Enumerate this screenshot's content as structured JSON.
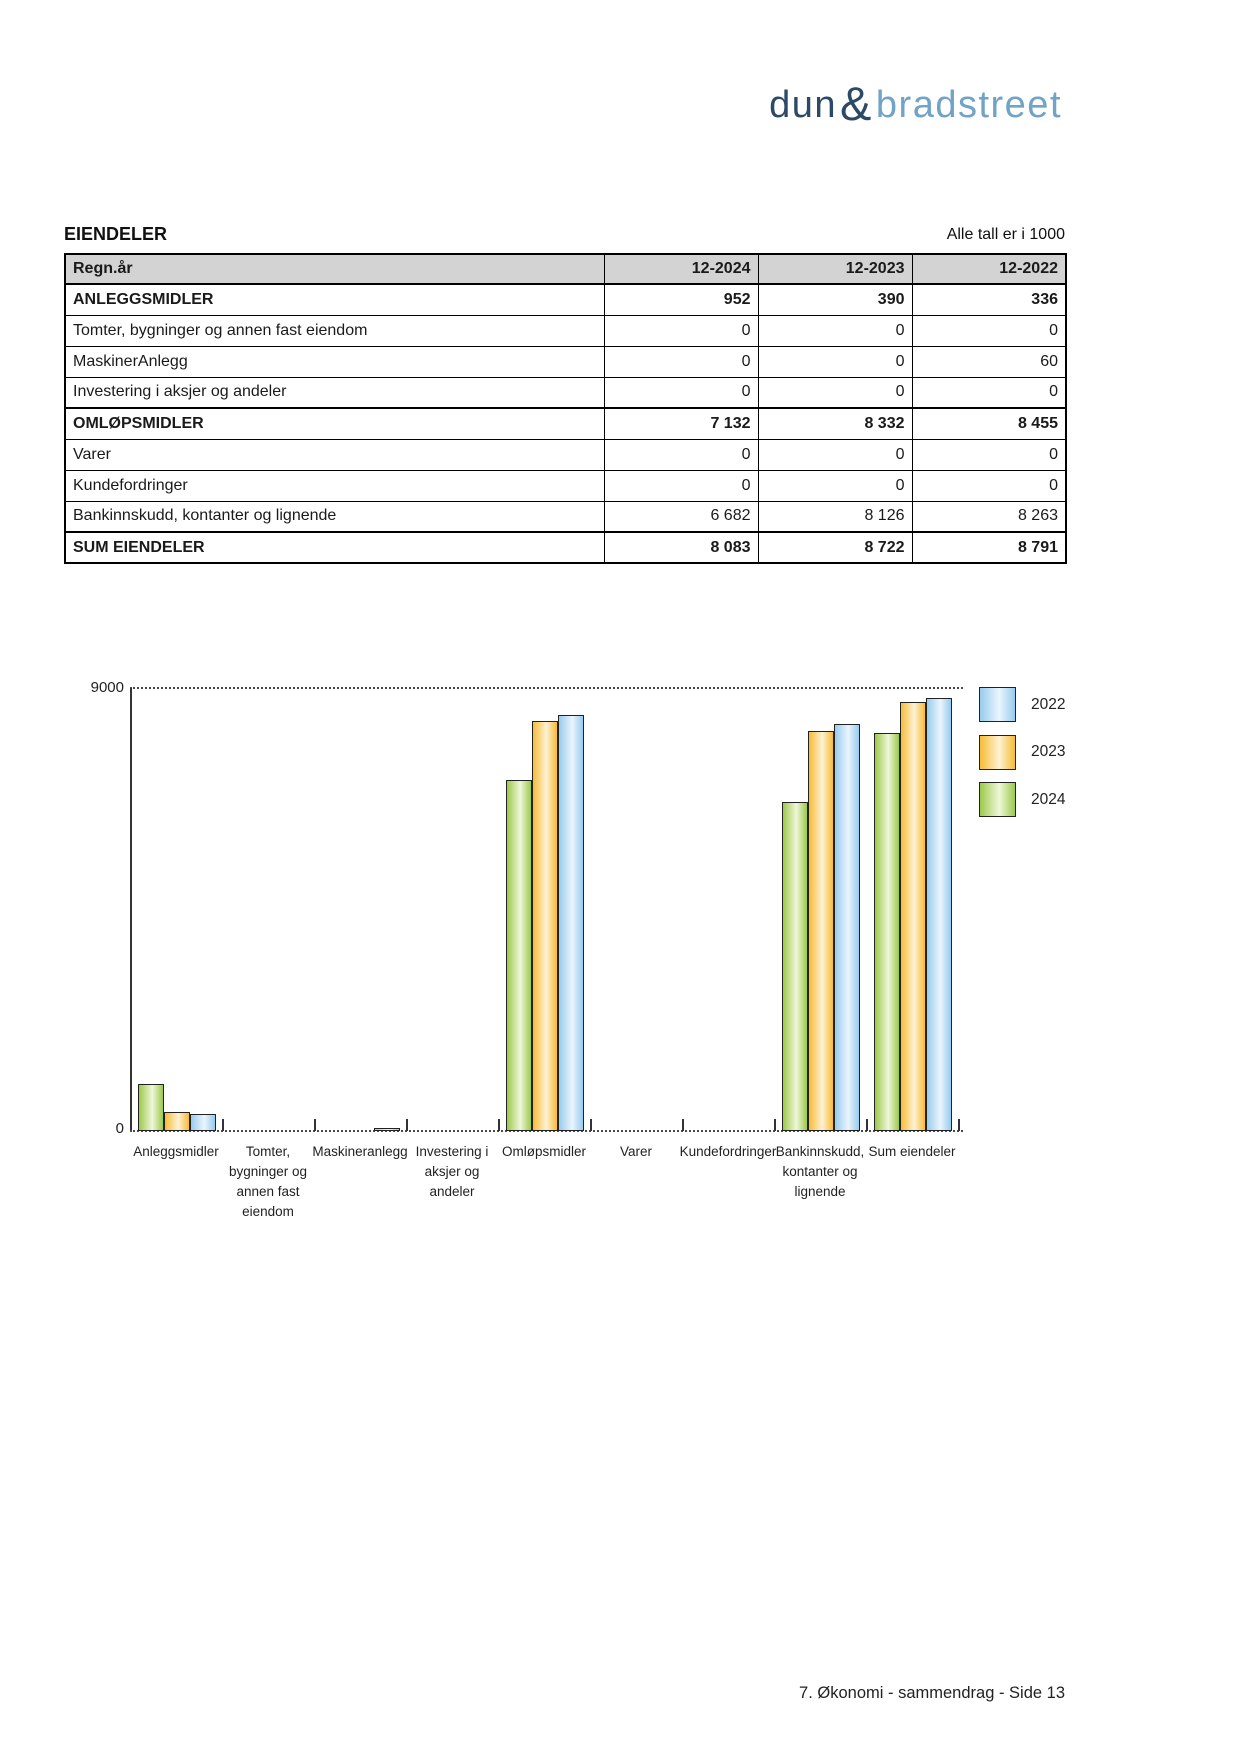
{
  "logo": {
    "dun": "dun",
    "amp": "&",
    "bradstreet": "bradstreet",
    "dun_color": "#2c4a66",
    "brad_color": "#71a3c6"
  },
  "section": {
    "title": "EIENDELER",
    "note": "Alle tall er i 1000"
  },
  "table": {
    "columns": [
      "Regn.år",
      "12-2024",
      "12-2023",
      "12-2022"
    ],
    "rows": [
      {
        "label": "ANLEGGSMIDLER",
        "values": [
          "952",
          "390",
          "336"
        ],
        "bold": true
      },
      {
        "label": "Tomter, bygninger og annen fast eiendom",
        "values": [
          "0",
          "0",
          "0"
        ],
        "bold": false
      },
      {
        "label": "MaskinerAnlegg",
        "values": [
          "0",
          "0",
          "0"
        ],
        "bold": false
      },
      {
        "label": "Investering i aksjer og andeler",
        "values": [
          "0",
          "0",
          "0"
        ],
        "bold": false
      },
      {
        "label": "OMLØPSMIDLER",
        "values": [
          "7 132",
          "8 332",
          "8 455"
        ],
        "bold": true
      },
      {
        "label": "Varer",
        "values": [
          "0",
          "0",
          "0"
        ],
        "bold": false
      },
      {
        "label": "Kundefordringer",
        "values": [
          "0",
          "0",
          "0"
        ],
        "bold": false
      },
      {
        "label": "Bankinnskudd, kontanter og lignende",
        "values": [
          "6 682",
          "8 126",
          "8 263"
        ],
        "bold": false
      },
      {
        "label": "SUM EIENDELER",
        "values": [
          "8 083",
          "8 722",
          "8 791"
        ],
        "bold": true
      }
    ],
    "row_overrides": {
      "2": {
        "values": [
          "0",
          "0",
          "60"
        ]
      }
    }
  },
  "chart_data": {
    "type": "bar",
    "title": "",
    "xlabel": "",
    "ylabel": "",
    "ylim": [
      0,
      9000
    ],
    "ytick_labels": {
      "top": "9000",
      "bottom": "0"
    },
    "grid": "dotted-top-and-baseline",
    "legend_position": "right",
    "categories": [
      {
        "lines": [
          "Anleggsmidler"
        ]
      },
      {
        "lines": [
          "Tomter,",
          "bygninger og",
          "annen fast",
          "eiendom"
        ]
      },
      {
        "lines": [
          "Maskineranlegg"
        ]
      },
      {
        "lines": [
          "Investering i",
          "aksjer og",
          "andeler"
        ]
      },
      {
        "lines": [
          "Omløpsmidler"
        ]
      },
      {
        "lines": [
          "Varer"
        ]
      },
      {
        "lines": [
          "Kundefordringer"
        ]
      },
      {
        "lines": [
          "Bankinnskudd,",
          "kontanter og",
          "lignende"
        ]
      },
      {
        "lines": [
          "Sum eiendeler"
        ]
      }
    ],
    "series": [
      {
        "name": "2024",
        "values": [
          952,
          0,
          0,
          0,
          7132,
          0,
          0,
          6682,
          8083
        ],
        "edge_color": "#9cc94b",
        "mid_color": "#eff7da"
      },
      {
        "name": "2023",
        "values": [
          390,
          0,
          0,
          0,
          8332,
          0,
          0,
          8126,
          8722
        ],
        "edge_color": "#f6bc35",
        "mid_color": "#fdf2d4"
      },
      {
        "name": "2022",
        "values": [
          336,
          0,
          60,
          0,
          8455,
          0,
          0,
          8263,
          8791
        ],
        "edge_color": "#97cbed",
        "mid_color": "#ebf5fd"
      }
    ],
    "legend": [
      "2022",
      "2023",
      "2024"
    ]
  },
  "footer": {
    "text": "7. Økonomi - sammendrag - Side 13"
  }
}
